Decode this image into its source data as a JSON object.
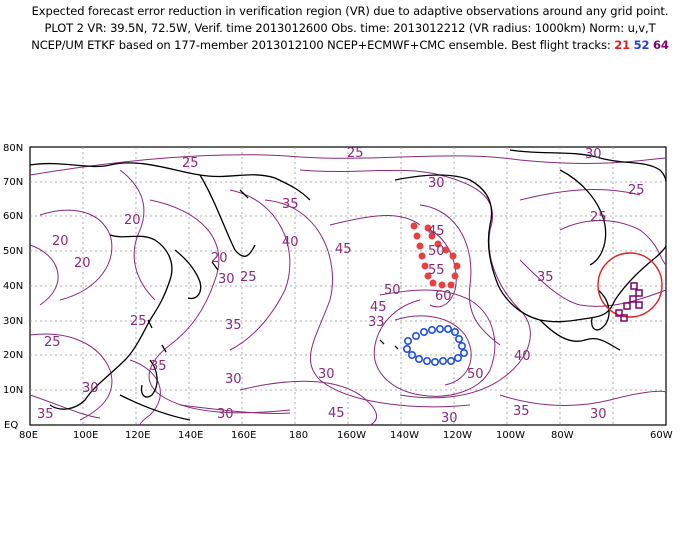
{
  "header": {
    "line1": "Expected forecast error reduction in verification region (VR) due to adaptive observations around any grid point.",
    "line2": "PLOT 2 VR: 39.5N, 72.5W, Verif. time 2013012600 Obs. time: 2013012212 (VR radius: 1000km) Norm: u,v,T",
    "line3_prefix": "NCEP/UM ETKF based on 177-member 2013012100 NCEP+ECMWF+CMC ensemble. Best flight tracks:",
    "tracks": [
      {
        "label": "21",
        "color": "#e02020"
      },
      {
        "label": "52",
        "color": "#2040e0"
      },
      {
        "label": "64",
        "color": "#800070"
      }
    ]
  },
  "map": {
    "lon_ticks": [
      "80E",
      "100E",
      "120E",
      "140E",
      "160E",
      "180",
      "160W",
      "140W",
      "120W",
      "100W",
      "80W",
      "60W"
    ],
    "lat_ticks": [
      "EQ",
      "10N",
      "20N",
      "30N",
      "40N",
      "50N",
      "60N",
      "70N",
      "80N"
    ],
    "contour_labels": [
      "25",
      "25",
      "30",
      "30",
      "35",
      "20",
      "20",
      "20",
      "40",
      "45",
      "30",
      "25",
      "20",
      "35",
      "25",
      "35",
      "25",
      "30",
      "45",
      "50",
      "55",
      "60",
      "50",
      "45",
      "33",
      "35",
      "40",
      "50",
      "30",
      "25",
      "30",
      "45",
      "30",
      "35",
      "30",
      "35",
      "25",
      "30"
    ],
    "colors": {
      "contour": "#8a2a7a",
      "coast": "#000000",
      "grid": "#888888",
      "track21": "#e84040",
      "track52": "#2050e0",
      "track64": "#800070",
      "vr_circle": "#e02020"
    }
  }
}
